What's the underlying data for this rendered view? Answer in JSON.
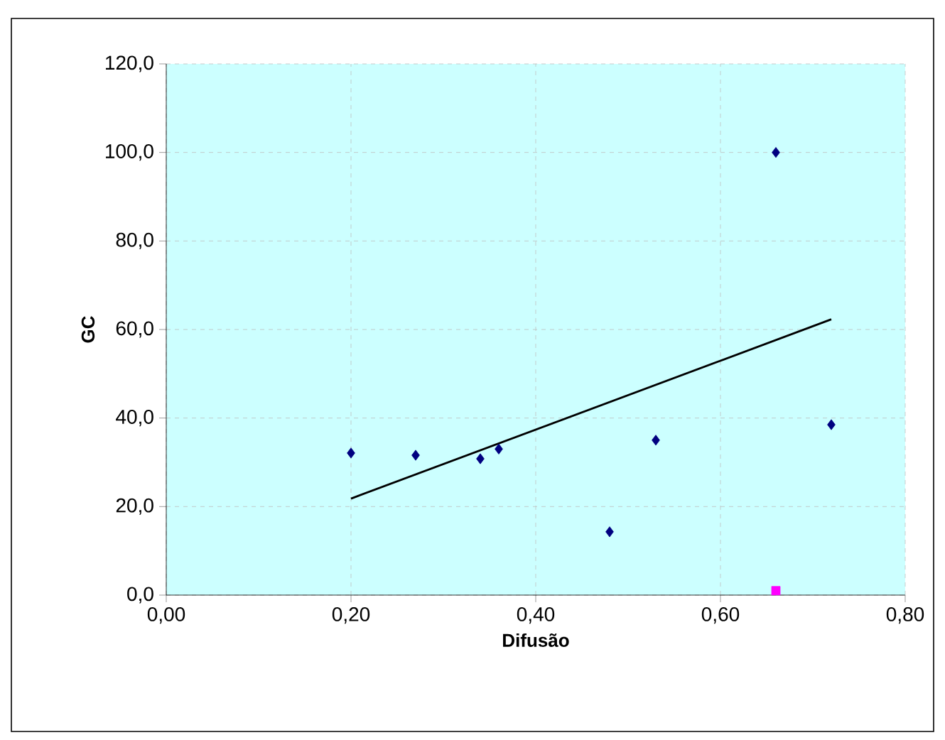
{
  "chart_data": {
    "type": "scatter",
    "xlabel": "Difusão",
    "ylabel": "GC",
    "xlim": [
      0,
      0.8
    ],
    "ylim": [
      0,
      120
    ],
    "xticks": [
      {
        "value": 0,
        "label": "0,00"
      },
      {
        "value": 0.2,
        "label": "0,20"
      },
      {
        "value": 0.4,
        "label": "0,40"
      },
      {
        "value": 0.6,
        "label": "0,60"
      },
      {
        "value": 0.8,
        "label": "0,80"
      }
    ],
    "yticks": [
      {
        "value": 0,
        "label": "0,0"
      },
      {
        "value": 20,
        "label": "20,0"
      },
      {
        "value": 40,
        "label": "40,0"
      },
      {
        "value": 60,
        "label": "60,0"
      },
      {
        "value": 80,
        "label": "80,0"
      },
      {
        "value": 100,
        "label": "100,0"
      },
      {
        "value": 120,
        "label": "120,0"
      }
    ],
    "grid": true,
    "series": [
      {
        "marker": "diamond",
        "color": "#000080",
        "x": [
          0.2,
          0.27,
          0.34,
          0.36,
          0.48,
          0.53,
          0.66,
          0.72
        ],
        "values": [
          32.1,
          31.6,
          30.8,
          33.0,
          14.3,
          35.0,
          100,
          38.5
        ]
      },
      {
        "marker": "square",
        "color": "#ff00ff",
        "x": [
          0.66
        ],
        "values": [
          1
        ]
      },
      {
        "type": "line",
        "marker": "none",
        "line_style": "solid",
        "color": "#000000",
        "x": [
          0.2,
          0.72
        ],
        "values": [
          21.8,
          62.3
        ]
      }
    ]
  }
}
